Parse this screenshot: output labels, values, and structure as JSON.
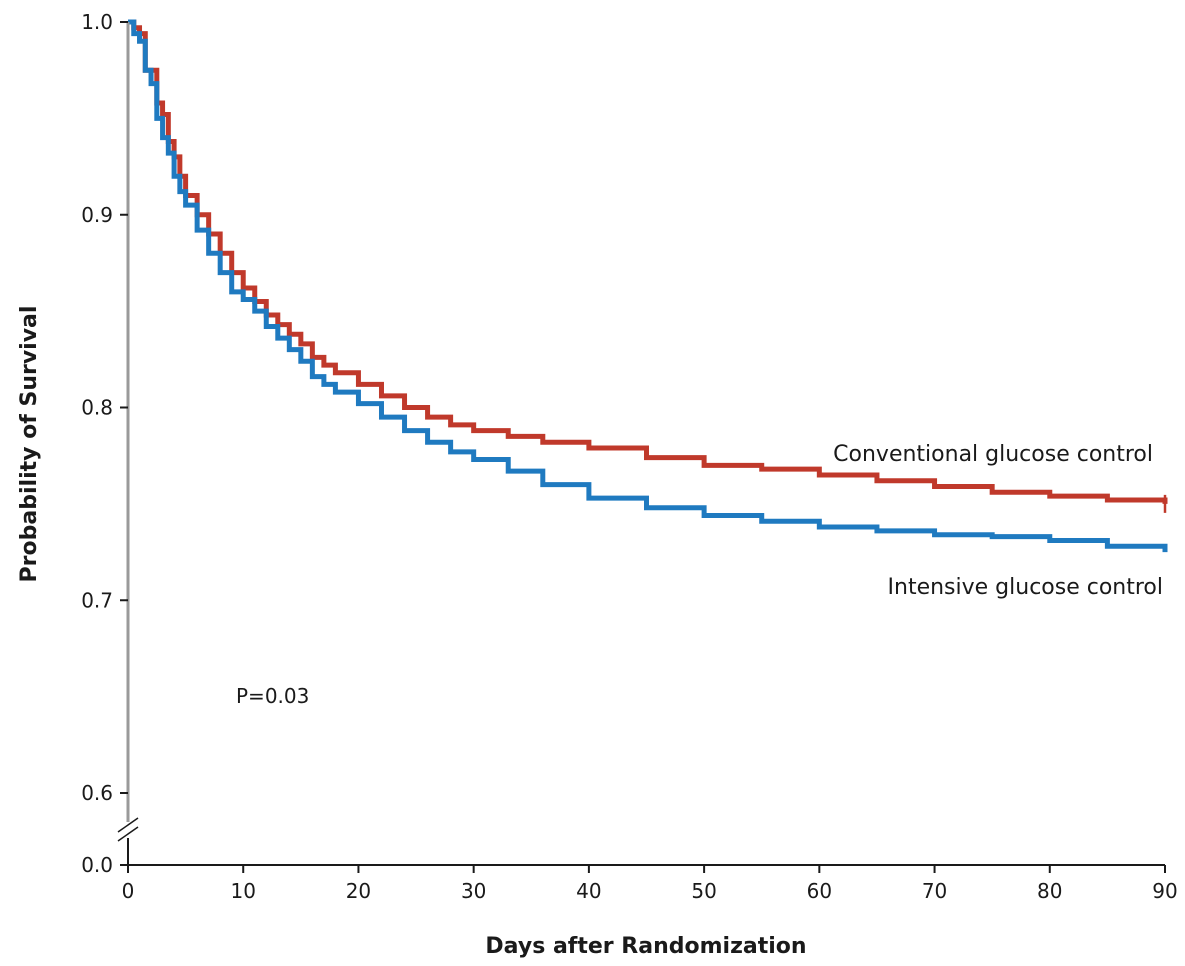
{
  "chart_data": {
    "type": "line",
    "title": "",
    "xlabel": "Days after Randomization",
    "ylabel": "Probability of Survival",
    "xlim": [
      0,
      90
    ],
    "ylim": [
      0.6,
      1.0
    ],
    "axis_break": true,
    "x_ticks": [
      "0",
      "10",
      "20",
      "30",
      "40",
      "50",
      "60",
      "70",
      "80",
      "90"
    ],
    "y_ticks": [
      "0.0",
      "0.6",
      "0.7",
      "0.8",
      "0.9",
      "1.0"
    ],
    "grid": false,
    "annotation": "P=0.03",
    "series": [
      {
        "name": "Conventional glucose control",
        "color": "#c0392b",
        "step": true,
        "x": [
          0,
          0.5,
          1,
          1.5,
          2,
          2.5,
          3,
          3.5,
          4,
          4.5,
          5,
          6,
          7,
          8,
          9,
          10,
          11,
          12,
          13,
          14,
          15,
          16,
          17,
          18,
          20,
          22,
          24,
          26,
          28,
          30,
          33,
          36,
          40,
          45,
          50,
          55,
          60,
          65,
          70,
          75,
          80,
          85,
          90
        ],
        "values": [
          1.0,
          0.997,
          0.994,
          0.975,
          0.975,
          0.958,
          0.952,
          0.938,
          0.93,
          0.92,
          0.91,
          0.9,
          0.89,
          0.88,
          0.87,
          0.862,
          0.855,
          0.848,
          0.843,
          0.838,
          0.833,
          0.826,
          0.822,
          0.818,
          0.812,
          0.806,
          0.8,
          0.795,
          0.791,
          0.788,
          0.785,
          0.782,
          0.779,
          0.774,
          0.77,
          0.768,
          0.765,
          0.762,
          0.759,
          0.756,
          0.754,
          0.752,
          0.75
        ]
      },
      {
        "name": "Intensive glucose control",
        "color": "#1f7ac0",
        "step": true,
        "x": [
          0,
          0.5,
          1,
          1.5,
          2,
          2.5,
          3,
          3.5,
          4,
          4.5,
          5,
          6,
          7,
          8,
          9,
          10,
          11,
          12,
          13,
          14,
          15,
          16,
          17,
          18,
          20,
          22,
          24,
          26,
          28,
          30,
          33,
          36,
          40,
          45,
          50,
          55,
          60,
          65,
          70,
          75,
          80,
          85,
          90
        ],
        "values": [
          1.0,
          0.994,
          0.99,
          0.975,
          0.968,
          0.95,
          0.94,
          0.932,
          0.92,
          0.912,
          0.905,
          0.892,
          0.88,
          0.87,
          0.86,
          0.856,
          0.85,
          0.842,
          0.836,
          0.83,
          0.824,
          0.816,
          0.812,
          0.808,
          0.802,
          0.795,
          0.788,
          0.782,
          0.777,
          0.773,
          0.767,
          0.76,
          0.753,
          0.748,
          0.744,
          0.741,
          0.738,
          0.736,
          0.734,
          0.733,
          0.731,
          0.728,
          0.725
        ]
      }
    ]
  }
}
